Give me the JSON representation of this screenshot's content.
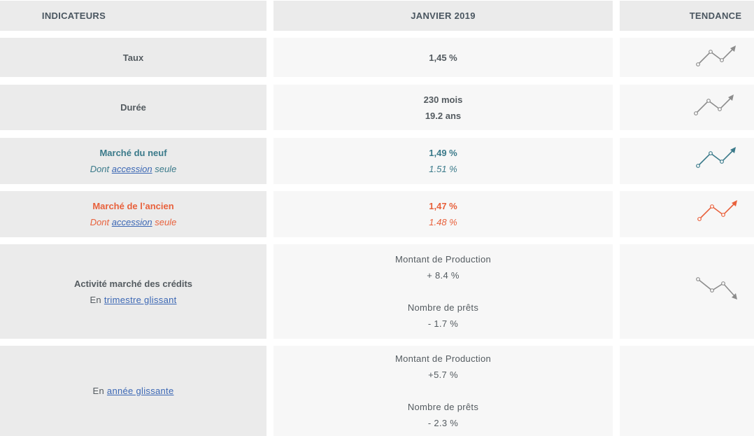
{
  "header": {
    "col_indicators": "INDICATEURS",
    "col_period": "JANVIER 2019",
    "col_trend": "TENDANCE"
  },
  "rows": {
    "taux": {
      "label": "Taux",
      "value": "1,45 %",
      "trend_icon": "trend-up-icon",
      "trend_color": "#8c8c8c"
    },
    "duree": {
      "label": "Durée",
      "value_1": "230 mois",
      "value_2": "19.2 ans",
      "trend_icon": "trend-up-icon",
      "trend_color": "#8c8c8c"
    },
    "neuf": {
      "label": "Marché du neuf",
      "sub_prefix": "Dont",
      "sub_link": "accession",
      "sub_suffix": "seule",
      "value": "1,49 %",
      "sub_value": "1.51 %",
      "color": "#3b7a8a",
      "trend_icon": "trend-up-icon"
    },
    "ancien": {
      "label": "Marché de l’ancien",
      "sub_prefix": "Dont",
      "sub_link": "accession",
      "sub_suffix": "seule",
      "value": "1,47 %",
      "sub_value": "1.48 %",
      "color": "#e8613c",
      "trend_icon": "trend-up-icon"
    },
    "activite": {
      "label": "Activité marché des crédits",
      "sub_prefix": "En",
      "sub_link": "trimestre glissant",
      "prod_label": "Montant de Production",
      "prod_value": "+ 8.4 %",
      "prets_label": "Nombre de prêts",
      "prets_value": "- 1.7 %",
      "trend_icon": "trend-down-icon",
      "trend_color": "#8c8c8c"
    },
    "annee": {
      "sub_prefix": "En",
      "sub_link": "année glissante",
      "prod_label": "Montant de Production",
      "prod_value": "+5.7 %",
      "prets_label": "Nombre de prêts",
      "prets_value": "- 2.3 %"
    }
  }
}
